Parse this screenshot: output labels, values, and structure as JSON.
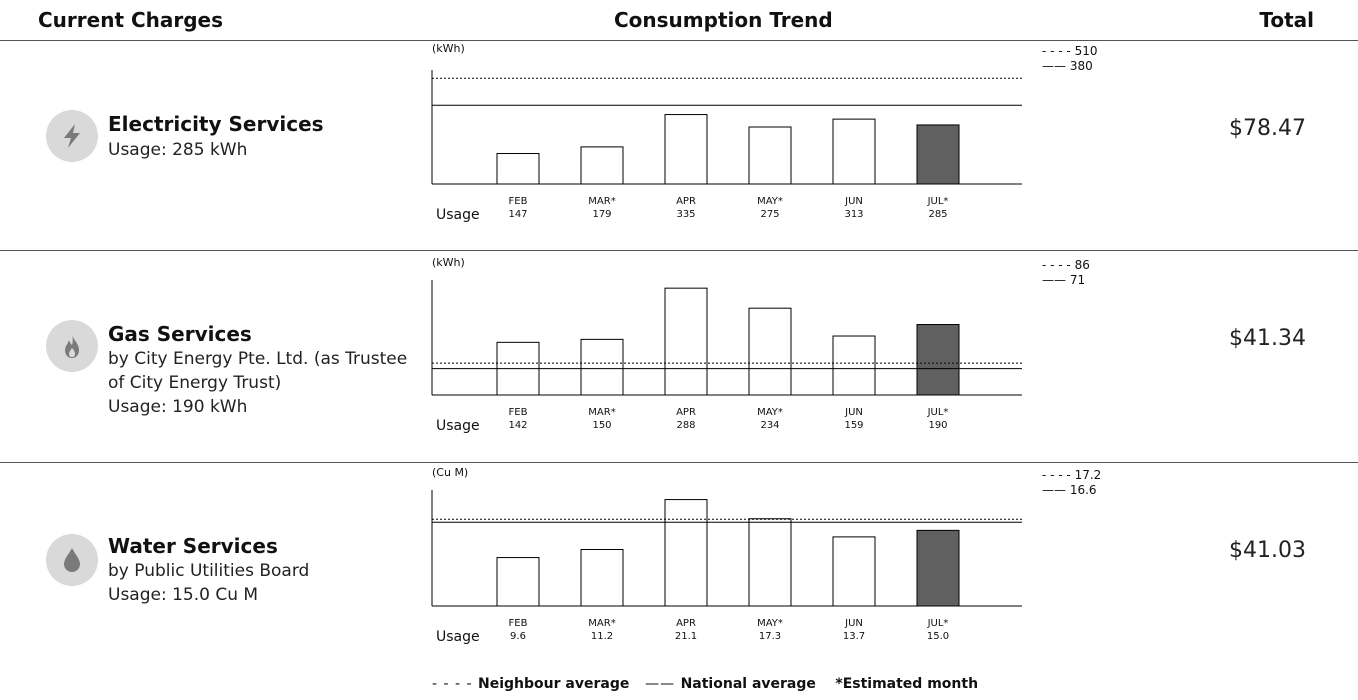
{
  "headers": {
    "current_charges": "Current Charges",
    "consumption_trend": "Consumption Trend",
    "total": "Total"
  },
  "services": [
    {
      "key": "electricity",
      "name": "Electricity Services",
      "lines": [
        "Usage: 285 kWh"
      ],
      "total": "$78.47",
      "icon": "lightning-icon",
      "chart": {
        "unit": "(kWh)",
        "neighbour_avg_label": "510",
        "national_avg_label": "380",
        "usage_label": "Usage",
        "months": [
          "FEB",
          "MAR*",
          "APR",
          "MAY*",
          "JUN",
          "JUL*"
        ],
        "values_text": [
          "147",
          "179",
          "335",
          "275",
          "313",
          "285"
        ]
      }
    },
    {
      "key": "gas",
      "name": "Gas Services",
      "lines": [
        "by City Energy Pte. Ltd. (as Trustee",
        "of City Energy Trust)",
        "Usage: 190 kWh"
      ],
      "total": "$41.34",
      "icon": "flame-icon",
      "chart": {
        "unit": "(kWh)",
        "neighbour_avg_label": "86",
        "national_avg_label": "71",
        "usage_label": "Usage",
        "months": [
          "FEB",
          "MAR*",
          "APR",
          "MAY*",
          "JUN",
          "JUL*"
        ],
        "values_text": [
          "142",
          "150",
          "288",
          "234",
          "159",
          "190"
        ]
      }
    },
    {
      "key": "water",
      "name": "Water Services",
      "lines": [
        "by Public Utilities Board",
        "Usage: 15.0 Cu M"
      ],
      "total": "$41.03",
      "icon": "water-drop-icon",
      "chart": {
        "unit": "(Cu M)",
        "neighbour_avg_label": "17.2",
        "national_avg_label": "16.6",
        "usage_label": "Usage",
        "months": [
          "FEB",
          "MAR*",
          "APR",
          "MAY*",
          "JUN",
          "JUL*"
        ],
        "values_text": [
          "9.6",
          "11.2",
          "21.1",
          "17.3",
          "13.7",
          "15.0"
        ]
      }
    }
  ],
  "legend": {
    "neighbour": "Neighbour average",
    "national": "National average",
    "estimated": "*Estimated month"
  },
  "chart_data": [
    {
      "type": "bar",
      "categories": [
        "FEB",
        "MAR*",
        "APR",
        "MAY*",
        "JUN",
        "JUL*"
      ],
      "values": [
        147,
        179,
        335,
        275,
        313,
        285
      ],
      "ylabel": "(kWh)",
      "ylim": [
        0,
        550
      ],
      "reference_lines": {
        "neighbour_average": 510,
        "national_average": 380
      },
      "highlight": "JUL*",
      "colors": {
        "bar": "#ffffff",
        "highlight": "#606060"
      }
    },
    {
      "type": "bar",
      "categories": [
        "FEB",
        "MAR*",
        "APR",
        "MAY*",
        "JUN",
        "JUL*"
      ],
      "values": [
        142,
        150,
        288,
        234,
        159,
        190
      ],
      "ylabel": "(kWh)",
      "ylim": [
        0,
        310
      ],
      "reference_lines": {
        "neighbour_average": 86,
        "national_average": 71
      },
      "highlight": "JUL*",
      "colors": {
        "bar": "#ffffff",
        "highlight": "#606060"
      }
    },
    {
      "type": "bar",
      "categories": [
        "FEB",
        "MAR*",
        "APR",
        "MAY*",
        "JUN",
        "JUL*"
      ],
      "values": [
        9.6,
        11.2,
        21.1,
        17.3,
        13.7,
        15.0
      ],
      "ylabel": "(Cu M)",
      "ylim": [
        0,
        23
      ],
      "reference_lines": {
        "neighbour_average": 17.2,
        "national_average": 16.6
      },
      "highlight": "JUL*",
      "colors": {
        "bar": "#ffffff",
        "highlight": "#606060"
      }
    }
  ]
}
